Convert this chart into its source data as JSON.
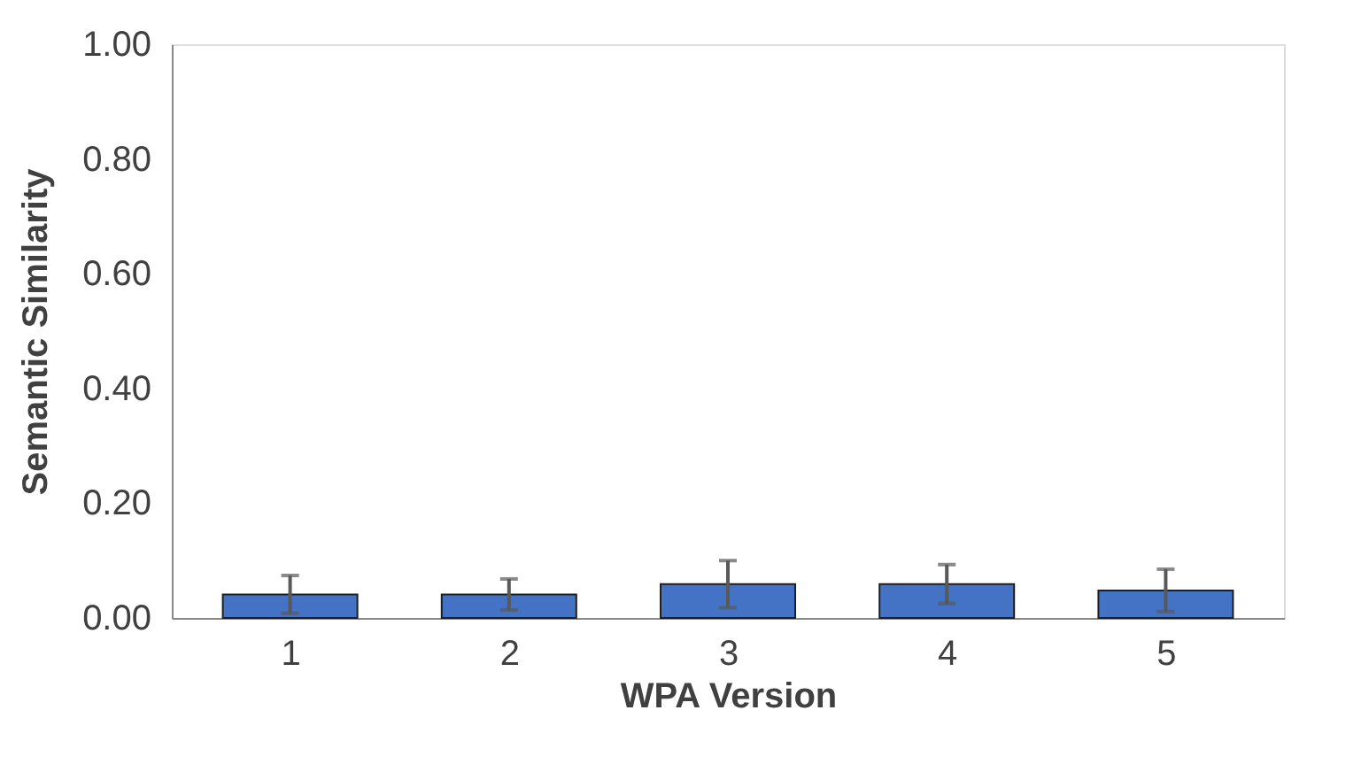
{
  "chart_data": {
    "type": "bar",
    "xlabel": "WPA Version",
    "ylabel": "Semantic Similarity",
    "categories": [
      "1",
      "2",
      "3",
      "4",
      "5"
    ],
    "values": [
      0.041,
      0.041,
      0.059,
      0.059,
      0.048
    ],
    "errors": [
      0.033,
      0.027,
      0.041,
      0.034,
      0.037
    ],
    "color": "#4472c4",
    "ylim": [
      0,
      1
    ],
    "yticks": [
      {
        "value": 0,
        "label": "0.00"
      },
      {
        "value": 0.2,
        "label": "0.20"
      },
      {
        "value": 0.4,
        "label": "0.40"
      },
      {
        "value": 0.6,
        "label": "0.60"
      },
      {
        "value": 0.8,
        "label": "0.80"
      },
      {
        "value": 1,
        "label": "1.00"
      }
    ],
    "grid": false
  }
}
